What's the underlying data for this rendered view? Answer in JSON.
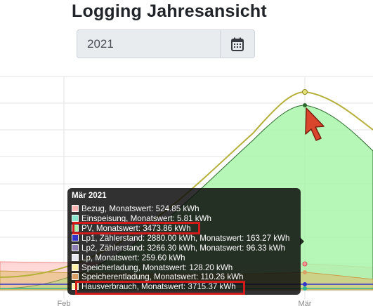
{
  "header": {
    "title": "Logging Jahresansicht"
  },
  "date_picker": {
    "value": "2021",
    "icon": "calendar-icon"
  },
  "chart_data": {
    "type": "area",
    "x": [
      "Feb",
      "Mär"
    ],
    "series": [
      {
        "name": "Bezug",
        "color": "#ffb3b3",
        "values": [
          null,
          524.85
        ]
      },
      {
        "name": "Einspeisung",
        "color": "#8be6d0",
        "values": [
          null,
          5.81
        ]
      },
      {
        "name": "PV",
        "color": "#a9f5a9",
        "values": [
          null,
          3473.86
        ]
      },
      {
        "name": "Lp1",
        "color": "#3333cc",
        "values": [
          null,
          163.27
        ]
      },
      {
        "name": "Lp2",
        "color": "#8d7fb5",
        "values": [
          null,
          96.33
        ]
      },
      {
        "name": "Lp",
        "color": "#e6e6f0",
        "values": [
          null,
          259.6
        ]
      },
      {
        "name": "Speicherladung",
        "color": "#fff2a6",
        "values": [
          null,
          128.2
        ]
      },
      {
        "name": "Speicherentladung",
        "color": "#d9a066",
        "values": [
          null,
          110.26
        ]
      },
      {
        "name": "Hausverbrauch",
        "color": "#b5b03a",
        "values": [
          null,
          3715.37
        ]
      }
    ],
    "grid": true,
    "legend": "none"
  },
  "tooltip": {
    "title": "Mär 2021",
    "rows": [
      {
        "text": "Bezug, Monatswert: 524.85 kWh",
        "color": "#ffb3b3"
      },
      {
        "text": "Einspeisung, Monatswert: 5.81 kWh",
        "color": "#8be6d0"
      },
      {
        "text": "PV, Monatswert: 3473.86 kWh",
        "color": "#a9f5a9"
      },
      {
        "text": "Lp1, Zählerstand: 2880.00 kWh, Monatswert: 163.27 kWh",
        "color": "#3333cc"
      },
      {
        "text": "Lp2, Zählerstand: 3266.30 kWh, Monatswert: 96.33 kWh",
        "color": "#8d7fb5"
      },
      {
        "text": "Lp, Monatswert: 259.60 kWh",
        "color": "#e6e6f0"
      },
      {
        "text": "Speicherladung, Monatswert: 128.20 kWh",
        "color": "#fff2a6"
      },
      {
        "text": "Speicherentladung, Monatswert: 110.26 kWh",
        "color": "#d9a066"
      },
      {
        "text": "Hausverbrauch, Monatswert: 3715.37 kWh",
        "color": "#fff2a6"
      }
    ]
  }
}
